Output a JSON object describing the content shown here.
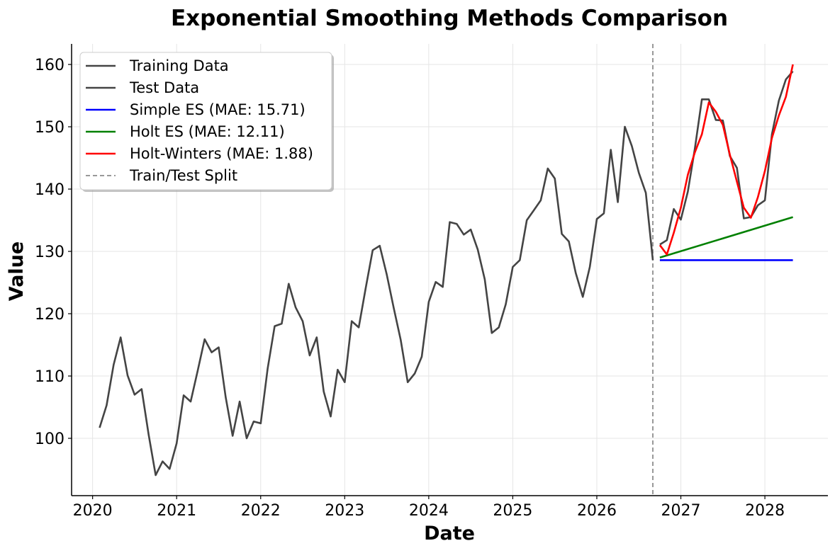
{
  "chart_data": {
    "type": "line",
    "title": "Exponential Smoothing Methods Comparison",
    "xlabel": "Date",
    "ylabel": "Value",
    "xlim": [
      "2019-09",
      "2028-09"
    ],
    "ylim": [
      90.8,
      163.3
    ],
    "x_ticks": [
      "2020",
      "2021",
      "2022",
      "2023",
      "2024",
      "2025",
      "2026",
      "2027",
      "2028"
    ],
    "y_ticks": [
      100,
      110,
      120,
      130,
      140,
      150,
      160
    ],
    "grid": true,
    "legend_placement": "top-left",
    "train_test_split": "2026-08",
    "series": [
      {
        "name": "Training Data",
        "color": "#444444",
        "x": [
          "2020-01",
          "2020-02",
          "2020-03",
          "2020-04",
          "2020-05",
          "2020-06",
          "2020-07",
          "2020-08",
          "2020-09",
          "2020-10",
          "2020-11",
          "2020-12",
          "2021-01",
          "2021-02",
          "2021-03",
          "2021-04",
          "2021-05",
          "2021-06",
          "2021-07",
          "2021-08",
          "2021-09",
          "2021-10",
          "2021-11",
          "2021-12",
          "2022-01",
          "2022-02",
          "2022-03",
          "2022-04",
          "2022-05",
          "2022-06",
          "2022-07",
          "2022-08",
          "2022-09",
          "2022-10",
          "2022-11",
          "2022-12",
          "2023-01",
          "2023-02",
          "2023-03",
          "2023-04",
          "2023-05",
          "2023-06",
          "2023-07",
          "2023-08",
          "2023-09",
          "2023-10",
          "2023-11",
          "2023-12",
          "2024-01",
          "2024-02",
          "2024-03",
          "2024-04",
          "2024-05",
          "2024-06",
          "2024-07",
          "2024-08",
          "2024-09",
          "2024-10",
          "2024-11",
          "2024-12",
          "2025-01",
          "2025-02",
          "2025-03",
          "2025-04",
          "2025-05",
          "2025-06",
          "2025-07",
          "2025-08",
          "2025-09",
          "2025-10",
          "2025-11",
          "2025-12",
          "2026-01",
          "2026-02",
          "2026-03",
          "2026-04",
          "2026-05",
          "2026-06",
          "2026-07",
          "2026-08"
        ],
        "values": [
          101.7,
          105.3,
          111.8,
          116.2,
          110.1,
          107.0,
          107.9,
          100.6,
          94.1,
          96.3,
          95.1,
          99.2,
          106.9,
          105.9,
          110.8,
          115.9,
          113.8,
          114.6,
          106.6,
          100.4,
          105.9,
          100.0,
          102.7,
          102.4,
          111.2,
          118.0,
          118.4,
          124.8,
          121.0,
          118.8,
          113.3,
          116.2,
          107.5,
          103.5,
          111.0,
          109.0,
          118.8,
          117.8,
          124.1,
          130.2,
          130.9,
          126.3,
          120.9,
          115.8,
          109.0,
          110.4,
          113.1,
          121.9,
          125.1,
          124.3,
          134.7,
          134.4,
          132.7,
          133.5,
          130.3,
          125.5,
          116.9,
          117.8,
          121.5,
          127.5,
          128.6,
          135.0,
          136.6,
          138.2,
          143.3,
          141.7,
          132.8,
          131.6,
          126.5,
          122.7,
          127.5,
          135.2,
          136.1,
          146.3,
          137.9,
          150.0,
          146.9,
          142.6,
          139.4,
          128.6
        ]
      },
      {
        "name": "Test Data",
        "color": "#444444",
        "x": [
          "2026-09",
          "2026-10",
          "2026-11",
          "2026-12",
          "2027-01",
          "2027-02",
          "2027-03",
          "2027-04",
          "2027-05",
          "2027-06",
          "2027-07",
          "2027-08",
          "2027-09",
          "2027-10",
          "2027-11",
          "2027-12",
          "2028-01",
          "2028-02",
          "2028-03",
          "2028-04"
        ],
        "values": [
          131.1,
          131.8,
          136.8,
          135.1,
          139.6,
          146.5,
          154.4,
          154.4,
          151.1,
          151.0,
          145.3,
          143.4,
          135.3,
          135.5,
          137.4,
          138.2,
          148.8,
          154.2,
          157.6,
          158.9
        ]
      },
      {
        "name": "Simple ES (MAE: 15.71)",
        "color": "#0000ff",
        "x": [
          "2026-09",
          "2028-04"
        ],
        "values": [
          128.6,
          128.6
        ]
      },
      {
        "name": "Holt ES (MAE: 12.11)",
        "color": "#008000",
        "x": [
          "2026-09",
          "2028-04"
        ],
        "values": [
          129.0,
          135.5
        ]
      },
      {
        "name": "Holt-Winters (MAE: 1.88)",
        "color": "#ff0000",
        "x": [
          "2026-09",
          "2026-10",
          "2026-11",
          "2026-12",
          "2027-01",
          "2027-02",
          "2027-03",
          "2027-04",
          "2027-05",
          "2027-06",
          "2027-07",
          "2027-08",
          "2027-09",
          "2027-10",
          "2027-11",
          "2027-12",
          "2028-01",
          "2028-02",
          "2028-03",
          "2028-04"
        ],
        "values": [
          131.0,
          129.5,
          133.0,
          137.0,
          142.3,
          145.9,
          148.8,
          153.9,
          152.4,
          150.3,
          145.5,
          141.2,
          137.0,
          135.4,
          138.7,
          142.9,
          148.2,
          151.8,
          154.8,
          160.0
        ]
      }
    ],
    "split_label": "Train/Test Split",
    "split_color": "#999999"
  }
}
